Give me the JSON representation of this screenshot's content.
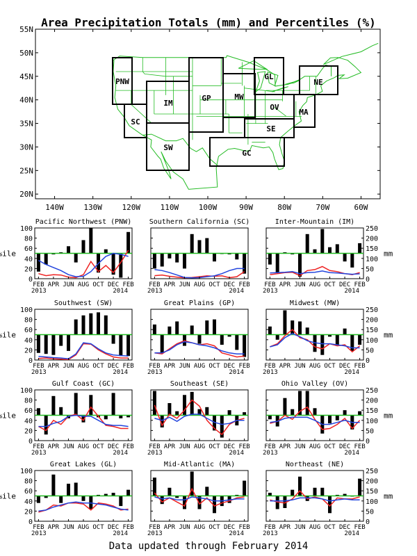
{
  "title": "Area Precipitation Totals (mm) and Percentiles (%)",
  "footer": "Data updated through February 2014",
  "colors": {
    "map_lines": "#22bb22",
    "region_box": "#000000",
    "region_label": "#2244dd",
    "bars": "#000000",
    "red_line": "#ee2222",
    "blue_line": "#2244dd",
    "ref_line": "#22bb22"
  },
  "map": {
    "lat_labels": [
      "55N",
      "50N",
      "45N",
      "40N",
      "35N",
      "30N",
      "25N",
      "20N"
    ],
    "lon_labels": [
      "140W",
      "130W",
      "120W",
      "110W",
      "100W",
      "90W",
      "80W",
      "70W",
      "60W"
    ],
    "regions": [
      {
        "id": "pnw",
        "label": "PNW"
      },
      {
        "id": "sc",
        "label": "SC"
      },
      {
        "id": "im",
        "label": "IM"
      },
      {
        "id": "sw",
        "label": "SW"
      },
      {
        "id": "gp",
        "label": "GP"
      },
      {
        "id": "mw",
        "label": "MW"
      },
      {
        "id": "gl",
        "label": "GL"
      },
      {
        "id": "ov",
        "label": "OV"
      },
      {
        "id": "ne",
        "label": "NE"
      },
      {
        "id": "ma",
        "label": "MA"
      },
      {
        "id": "se",
        "label": "SE"
      },
      {
        "id": "gc",
        "label": "GC"
      }
    ]
  },
  "axes_text": {
    "y_left_title": "%ile",
    "y_right_title": "mm",
    "y_left_ticks": [
      "0",
      "20",
      "40",
      "60",
      "80",
      "100"
    ],
    "y_right_ticks": [
      "0",
      "50",
      "100",
      "150",
      "200",
      "250"
    ],
    "x_ticks": [
      "FEB",
      "APR",
      "JUN",
      "AUG",
      "OCT",
      "DEC",
      "FEB"
    ],
    "x_year_start": "2013",
    "x_year_end": "2014"
  },
  "chart_data": [
    {
      "type": "bar",
      "title": "Pacific Northwest (PNW)",
      "months": [
        "FEB",
        "MAR",
        "APR",
        "MAY",
        "JUN",
        "JUL",
        "AUG",
        "SEP",
        "OCT",
        "NOV",
        "DEC",
        "JAN",
        "FEB"
      ],
      "xlabel": "",
      "ylabel": "%ile",
      "ylabel_right": "mm",
      "ylim": [
        0,
        100
      ],
      "ylim_right": [
        0,
        250
      ],
      "reference_percentile": 50,
      "bars_percentile": [
        14,
        28,
        48,
        52,
        64,
        32,
        76,
        100,
        12,
        58,
        8,
        2,
        92
      ],
      "series": [
        {
          "name": "",
          "color": "#ee2222",
          "values_mm": [
            25,
            15,
            20,
            18,
            8,
            5,
            20,
            85,
            35,
            65,
            30,
            80,
            140
          ]
        },
        {
          "name": "",
          "color": "#2244dd",
          "values_mm": [
            90,
            70,
            55,
            40,
            20,
            10,
            12,
            35,
            75,
            110,
            125,
            120,
            110
          ]
        }
      ]
    },
    {
      "type": "bar",
      "title": "Southern California (SC)",
      "months": [
        "FEB",
        "MAR",
        "APR",
        "MAY",
        "JUN",
        "JUL",
        "AUG",
        "SEP",
        "OCT",
        "NOV",
        "DEC",
        "JAN",
        "FEB"
      ],
      "xlabel": "",
      "ylabel": "%ile",
      "ylabel_right": "mm",
      "ylim": [
        0,
        100
      ],
      "ylim_right": [
        0,
        250
      ],
      "reference_percentile": 50,
      "bars_percentile": [
        20,
        24,
        40,
        32,
        20,
        88,
        76,
        80,
        34,
        50,
        48,
        38,
        10
      ],
      "series": [
        {
          "name": "",
          "color": "#ee2222",
          "values_mm": [
            15,
            18,
            12,
            8,
            4,
            6,
            10,
            14,
            12,
            14,
            5,
            10,
            35
          ]
        },
        {
          "name": "",
          "color": "#2244dd",
          "values_mm": [
            45,
            40,
            30,
            18,
            6,
            4,
            5,
            10,
            14,
            25,
            40,
            50,
            50
          ]
        }
      ]
    },
    {
      "type": "bar",
      "title": "Inter-Mountain (IM)",
      "months": [
        "FEB",
        "MAR",
        "APR",
        "MAY",
        "JUN",
        "JUL",
        "AUG",
        "SEP",
        "OCT",
        "NOV",
        "DEC",
        "JAN",
        "FEB"
      ],
      "xlabel": "",
      "ylabel": "%ile",
      "ylabel_right": "mm",
      "ylim": [
        0,
        100
      ],
      "ylim_right": [
        0,
        250
      ],
      "reference_percentile": 50,
      "bars_percentile": [
        28,
        12,
        52,
        48,
        4,
        88,
        58,
        98,
        62,
        68,
        34,
        22,
        70
      ],
      "series": [
        {
          "name": "",
          "color": "#ee2222",
          "values_mm": [
            20,
            25,
            30,
            32,
            15,
            40,
            45,
            60,
            40,
            35,
            25,
            20,
            30
          ]
        },
        {
          "name": "",
          "color": "#2244dd",
          "values_mm": [
            28,
            30,
            32,
            35,
            25,
            30,
            32,
            38,
            30,
            28,
            25,
            22,
            24
          ]
        }
      ]
    },
    {
      "type": "bar",
      "title": "Southwest (SW)",
      "months": [
        "FEB",
        "MAR",
        "APR",
        "MAY",
        "JUN",
        "JUL",
        "AUG",
        "SEP",
        "OCT",
        "NOV",
        "DEC",
        "JAN",
        "FEB"
      ],
      "xlabel": "",
      "ylabel": "%ile",
      "ylabel_right": "mm",
      "ylim": [
        0,
        100
      ],
      "ylim_right": [
        0,
        250
      ],
      "reference_percentile": 50,
      "bars_percentile": [
        14,
        12,
        10,
        28,
        18,
        80,
        88,
        92,
        94,
        88,
        32,
        8,
        8
      ],
      "series": [
        {
          "name": "",
          "color": "#ee2222",
          "values_mm": [
            8,
            10,
            6,
            4,
            2,
            25,
            80,
            78,
            50,
            30,
            15,
            10,
            10
          ]
        },
        {
          "name": "",
          "color": "#2244dd",
          "values_mm": [
            18,
            15,
            12,
            10,
            6,
            30,
            85,
            80,
            55,
            35,
            25,
            22,
            20
          ]
        }
      ]
    },
    {
      "type": "bar",
      "title": "Great Plains (GP)",
      "months": [
        "FEB",
        "MAR",
        "APR",
        "MAY",
        "JUN",
        "JUL",
        "AUG",
        "SEP",
        "OCT",
        "NOV",
        "DEC",
        "JAN",
        "FEB"
      ],
      "xlabel": "",
      "ylabel": "%ile",
      "ylabel_right": "mm",
      "ylim": [
        0,
        100
      ],
      "ylim_right": [
        0,
        250
      ],
      "reference_percentile": 50,
      "bars_percentile": [
        70,
        14,
        66,
        76,
        28,
        68,
        32,
        78,
        80,
        30,
        46,
        20,
        6
      ],
      "series": [
        {
          "name": "",
          "color": "#ee2222",
          "values_mm": [
            35,
            30,
            55,
            80,
            95,
            85,
            75,
            80,
            70,
            35,
            25,
            15,
            20
          ]
        },
        {
          "name": "",
          "color": "#2244dd",
          "values_mm": [
            35,
            35,
            50,
            75,
            90,
            85,
            75,
            70,
            60,
            45,
            35,
            30,
            30
          ]
        }
      ]
    },
    {
      "type": "bar",
      "title": "Midwest (MW)",
      "months": [
        "FEB",
        "MAR",
        "APR",
        "MAY",
        "JUN",
        "JUL",
        "AUG",
        "SEP",
        "OCT",
        "NOV",
        "DEC",
        "JAN",
        "FEB"
      ],
      "xlabel": "",
      "ylabel": "%ile",
      "ylabel_right": "mm",
      "ylim": [
        0,
        100
      ],
      "ylim_right": [
        0,
        250
      ],
      "reference_percentile": 50,
      "bars_percentile": [
        66,
        40,
        98,
        78,
        76,
        64,
        16,
        10,
        46,
        28,
        62,
        18,
        30
      ],
      "series": [
        {
          "name": "",
          "color": "#ee2222",
          "values_mm": [
            65,
            80,
            120,
            150,
            110,
            100,
            65,
            55,
            80,
            70,
            75,
            40,
            70
          ]
        },
        {
          "name": "",
          "color": "#2244dd",
          "values_mm": [
            65,
            75,
            110,
            130,
            115,
            95,
            85,
            80,
            80,
            75,
            70,
            60,
            60
          ]
        }
      ]
    },
    {
      "type": "bar",
      "title": "Gulf Coast (GC)",
      "months": [
        "FEB",
        "MAR",
        "APR",
        "MAY",
        "JUN",
        "JUL",
        "AUG",
        "SEP",
        "OCT",
        "NOV",
        "DEC",
        "JAN",
        "FEB"
      ],
      "xlabel": "",
      "ylabel": "%ile",
      "ylabel_right": "mm",
      "ylim": [
        0,
        100
      ],
      "ylim_right": [
        0,
        250
      ],
      "reference_percentile": 50,
      "bars_percentile": [
        64,
        12,
        88,
        66,
        44,
        94,
        36,
        90,
        46,
        42,
        94,
        44,
        46
      ],
      "series": [
        {
          "name": "",
          "color": "#ee2222",
          "values_mm": [
            70,
            50,
            100,
            80,
            120,
            130,
            100,
            165,
            120,
            75,
            70,
            60,
            60
          ]
        },
        {
          "name": "",
          "color": "#2244dd",
          "values_mm": [
            70,
            70,
            85,
            95,
            120,
            125,
            120,
            120,
            100,
            80,
            75,
            75,
            70
          ]
        }
      ]
    },
    {
      "type": "bar",
      "title": "Southeast (SE)",
      "months": [
        "FEB",
        "MAR",
        "APR",
        "MAY",
        "JUN",
        "JUL",
        "AUG",
        "SEP",
        "OCT",
        "NOV",
        "DEC",
        "JAN",
        "FEB"
      ],
      "xlabel": "",
      "ylabel": "%ile",
      "ylabel_right": "mm",
      "ylim": [
        0,
        100
      ],
      "ylim_right": [
        0,
        250
      ],
      "reference_percentile": 50,
      "bars_percentile": [
        98,
        26,
        74,
        58,
        90,
        96,
        62,
        66,
        20,
        6,
        60,
        30,
        56
      ],
      "series": [
        {
          "name": "",
          "color": "#ee2222",
          "values_mm": [
            175,
            75,
            130,
            110,
            150,
            200,
            170,
            100,
            60,
            30,
            80,
            100,
            110
          ]
        },
        {
          "name": "",
          "color": "#2244dd",
          "values_mm": [
            110,
            100,
            115,
            95,
            120,
            130,
            130,
            110,
            90,
            80,
            85,
            100,
            100
          ]
        }
      ]
    },
    {
      "type": "bar",
      "title": "Ohio Valley (OV)",
      "months": [
        "FEB",
        "MAR",
        "APR",
        "MAY",
        "JUN",
        "JUL",
        "AUG",
        "SEP",
        "OCT",
        "NOV",
        "DEC",
        "JAN",
        "FEB"
      ],
      "xlabel": "",
      "ylabel": "%ile",
      "ylabel_right": "mm",
      "ylim": [
        0,
        100
      ],
      "ylim_right": [
        0,
        250
      ],
      "reference_percentile": 50,
      "bars_percentile": [
        42,
        28,
        84,
        62,
        98,
        98,
        64,
        14,
        34,
        40,
        60,
        22,
        58
      ],
      "series": [
        {
          "name": "",
          "color": "#ee2222",
          "values_mm": [
            85,
            95,
            125,
            105,
            145,
            165,
            105,
            55,
            60,
            80,
            110,
            60,
            100
          ]
        },
        {
          "name": "",
          "color": "#2244dd",
          "values_mm": [
            90,
            95,
            110,
            115,
            115,
            115,
            100,
            80,
            80,
            90,
            100,
            90,
            90
          ]
        }
      ]
    },
    {
      "type": "bar",
      "title": "Great Lakes (GL)",
      "months": [
        "FEB",
        "MAR",
        "APR",
        "MAY",
        "JUN",
        "JUL",
        "AUG",
        "SEP",
        "OCT",
        "NOV",
        "DEC",
        "JAN",
        "FEB"
      ],
      "xlabel": "",
      "ylabel": "%ile",
      "ylabel_right": "mm",
      "ylim": [
        0,
        100
      ],
      "ylim_right": [
        0,
        250
      ],
      "reference_percentile": 50,
      "bars_percentile": [
        36,
        46,
        92,
        36,
        74,
        76,
        40,
        24,
        52,
        54,
        56,
        30,
        62
      ],
      "series": [
        {
          "name": "",
          "color": "#ee2222",
          "values_mm": [
            45,
            55,
            80,
            75,
            90,
            90,
            85,
            55,
            90,
            85,
            75,
            55,
            60
          ]
        },
        {
          "name": "",
          "color": "#2244dd",
          "values_mm": [
            50,
            55,
            70,
            80,
            90,
            95,
            90,
            90,
            85,
            80,
            70,
            60,
            55
          ]
        }
      ]
    },
    {
      "type": "bar",
      "title": "Mid-Atlantic (MA)",
      "months": [
        "FEB",
        "MAR",
        "APR",
        "MAY",
        "JUN",
        "JUL",
        "AUG",
        "SEP",
        "OCT",
        "NOV",
        "DEC",
        "JAN",
        "FEB"
      ],
      "xlabel": "",
      "ylabel": "%ile",
      "ylabel_right": "mm",
      "ylim": [
        0,
        100
      ],
      "ylim_right": [
        0,
        250
      ],
      "reference_percentile": 50,
      "bars_percentile": [
        86,
        34,
        66,
        46,
        24,
        98,
        24,
        68,
        16,
        30,
        36,
        52,
        80
      ],
      "series": [
        {
          "name": "",
          "color": "#ee2222",
          "values_mm": [
            140,
            95,
            115,
            95,
            75,
            160,
            85,
            115,
            75,
            90,
            100,
            115,
            120
          ]
        },
        {
          "name": "",
          "color": "#2244dd",
          "values_mm": [
            120,
            110,
            115,
            105,
            105,
            120,
            115,
            110,
            100,
            100,
            105,
            110,
            110
          ]
        }
      ]
    },
    {
      "type": "bar",
      "title": "Northeast (NE)",
      "months": [
        "FEB",
        "MAR",
        "APR",
        "MAY",
        "JUN",
        "JUL",
        "AUG",
        "SEP",
        "OCT",
        "NOV",
        "DEC",
        "JAN",
        "FEB"
      ],
      "xlabel": "",
      "ylabel": "%ile",
      "ylabel_right": "mm",
      "ylim": [
        0,
        100
      ],
      "ylim_right": [
        0,
        250
      ],
      "reference_percentile": 50,
      "bars_percentile": [
        56,
        24,
        26,
        62,
        88,
        40,
        66,
        66,
        16,
        52,
        54,
        50,
        84
      ],
      "series": [
        {
          "name": "",
          "color": "#ee2222",
          "values_mm": [
            105,
            95,
            90,
            110,
            150,
            110,
            120,
            110,
            75,
            115,
            110,
            110,
            120
          ]
        },
        {
          "name": "",
          "color": "#2244dd",
          "values_mm": [
            100,
            100,
            100,
            105,
            115,
            115,
            115,
            110,
            100,
            105,
            110,
            105,
            105
          ]
        }
      ]
    }
  ]
}
